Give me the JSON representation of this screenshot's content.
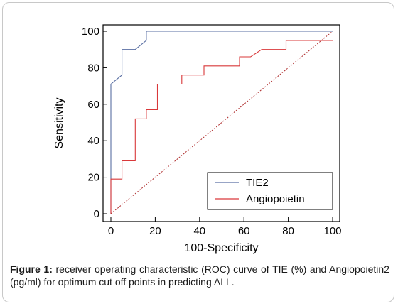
{
  "chart_data": {
    "type": "line",
    "xlabel": "100-Specificity",
    "ylabel": "Sensitivity",
    "xlim": [
      0,
      100
    ],
    "ylim": [
      0,
      100
    ],
    "xticks": [
      0,
      20,
      40,
      60,
      80,
      100
    ],
    "yticks": [
      0,
      20,
      40,
      60,
      80,
      100
    ],
    "grid": false,
    "legend_position": "bottom-right",
    "series": [
      {
        "name": "TIE2",
        "color": "#5a6fa3",
        "x": [
          0,
          0,
          5,
          5,
          11,
          16,
          16,
          100
        ],
        "y": [
          0,
          71,
          76,
          90,
          90,
          95,
          100,
          100
        ]
      },
      {
        "name": "Angiopoietin",
        "color": "#d9383a",
        "x": [
          0,
          0,
          5,
          5,
          11,
          11,
          16,
          16,
          21,
          21,
          32,
          32,
          42,
          42,
          58,
          58,
          63,
          63,
          68,
          68,
          79,
          79,
          100
        ],
        "y": [
          0,
          19,
          19,
          29,
          29,
          52,
          52,
          57,
          57,
          71,
          71,
          76,
          76,
          81,
          81,
          86,
          86,
          86,
          90,
          90,
          90,
          95,
          95
        ]
      },
      {
        "color": "#b03030",
        "style": "dotted",
        "x": [
          0,
          100
        ],
        "y": [
          0,
          100
        ]
      }
    ]
  },
  "caption": {
    "label": "Figure 1:",
    "text": " receiver operating characteristic (ROC) curve of TIE (%) and Angiopoietin2 (pg/ml) for optimum cut off points in predicting ALL."
  }
}
